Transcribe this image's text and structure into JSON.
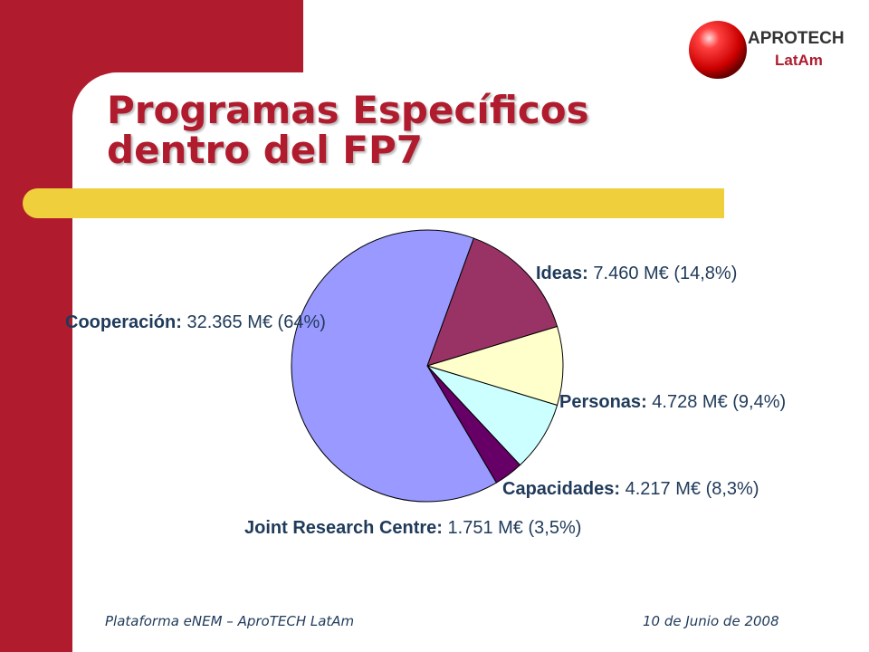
{
  "slide": {
    "title_line1": "Programas Específicos",
    "title_line2": "dentro del FP7",
    "footer_left": "Plataforma eNEM – AproTECH LatAm",
    "footer_right": "10 de Junio de 2008",
    "logo_text_main": "APROTECH",
    "logo_text_sub": "LatAm"
  },
  "colors": {
    "brand_red": "#b01c2e",
    "accent_yellow": "#f0cf3c",
    "label_text": "#1f3a5a"
  },
  "chart_data": {
    "type": "pie",
    "title": "",
    "unit": "M€",
    "slices": [
      {
        "name": "Cooperación",
        "value_text": "32.365 M€ (64%)",
        "value": 32365,
        "percent": 64,
        "color": "#9999ff"
      },
      {
        "name": "Ideas",
        "value_text": "7.460 M€ (14,8%)",
        "value": 7460,
        "percent": 14.8,
        "color": "#993366"
      },
      {
        "name": "Personas",
        "value_text": "4.728 M€ (9,4%)",
        "value": 4728,
        "percent": 9.4,
        "color": "#ffffcc"
      },
      {
        "name": "Capacidades",
        "value_text": "4.217 M€ (8,3%)",
        "value": 4217,
        "percent": 8.3,
        "color": "#ccffff"
      },
      {
        "name": "Joint Research Centre",
        "value_text": "1.751 M€ (3,5%)",
        "value": 1751,
        "percent": 3.5,
        "color": "#660066"
      }
    ]
  }
}
